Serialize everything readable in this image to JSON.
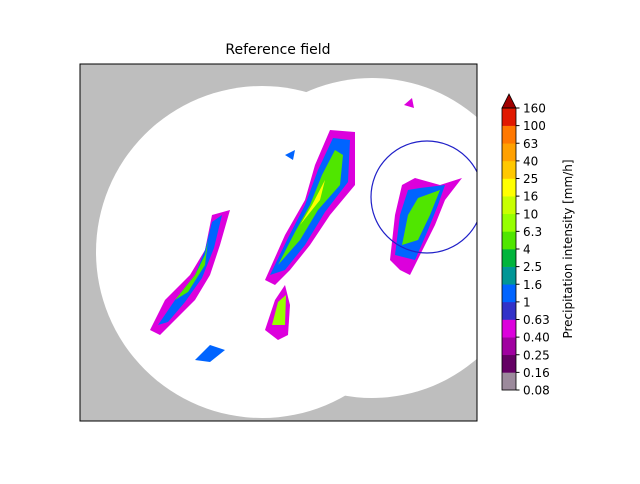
{
  "title": "Reference field",
  "colorbar": {
    "label": "Precipitation intensity [mm/h]",
    "ticks": [
      "0.08",
      "0.16",
      "0.25",
      "0.40",
      "0.63",
      "1",
      "1.6",
      "2.5",
      "4",
      "6.3",
      "10",
      "16",
      "25",
      "40",
      "63",
      "100",
      "160"
    ],
    "colors": [
      "#9c8a9c",
      "#640064",
      "#a000a0",
      "#dc00dc",
      "#3232c8",
      "#0064ff",
      "#009696",
      "#00b43c",
      "#50e600",
      "#96ff00",
      "#c8ff00",
      "#ffff00",
      "#ffc800",
      "#ffa000",
      "#ff7800",
      "#e11900"
    ],
    "extend_color": "#a00000"
  }
}
